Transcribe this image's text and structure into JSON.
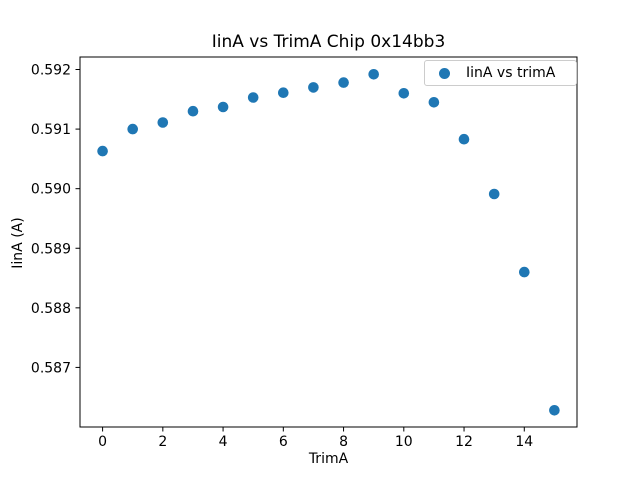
{
  "figure": {
    "background": "#ffffff"
  },
  "chart_data": {
    "type": "scatter",
    "title": "IinA vs TrimA Chip 0x14bb3",
    "xlabel": "TrimA",
    "ylabel": "IinA (A)",
    "legend": {
      "label": "IinA vs trimA",
      "position": "upper right"
    },
    "marker_color": "#1f77b4",
    "axis_color": "#000000",
    "grid": false,
    "x": [
      0,
      1,
      2,
      3,
      4,
      5,
      6,
      7,
      8,
      9,
      10,
      11,
      12,
      13,
      14,
      15
    ],
    "y": [
      0.59063,
      0.591,
      0.59111,
      0.5913,
      0.59137,
      0.59153,
      0.59161,
      0.5917,
      0.59178,
      0.59192,
      0.5916,
      0.59145,
      0.59083,
      0.58991,
      0.5886,
      0.58628
    ],
    "xlim": [
      -0.75,
      15.75
    ],
    "ylim": [
      0.586,
      0.59221
    ],
    "xticks": [
      0,
      2,
      4,
      6,
      8,
      10,
      12,
      14
    ],
    "yticks": [
      0.587,
      0.588,
      0.589,
      0.59,
      0.591,
      0.592
    ]
  }
}
